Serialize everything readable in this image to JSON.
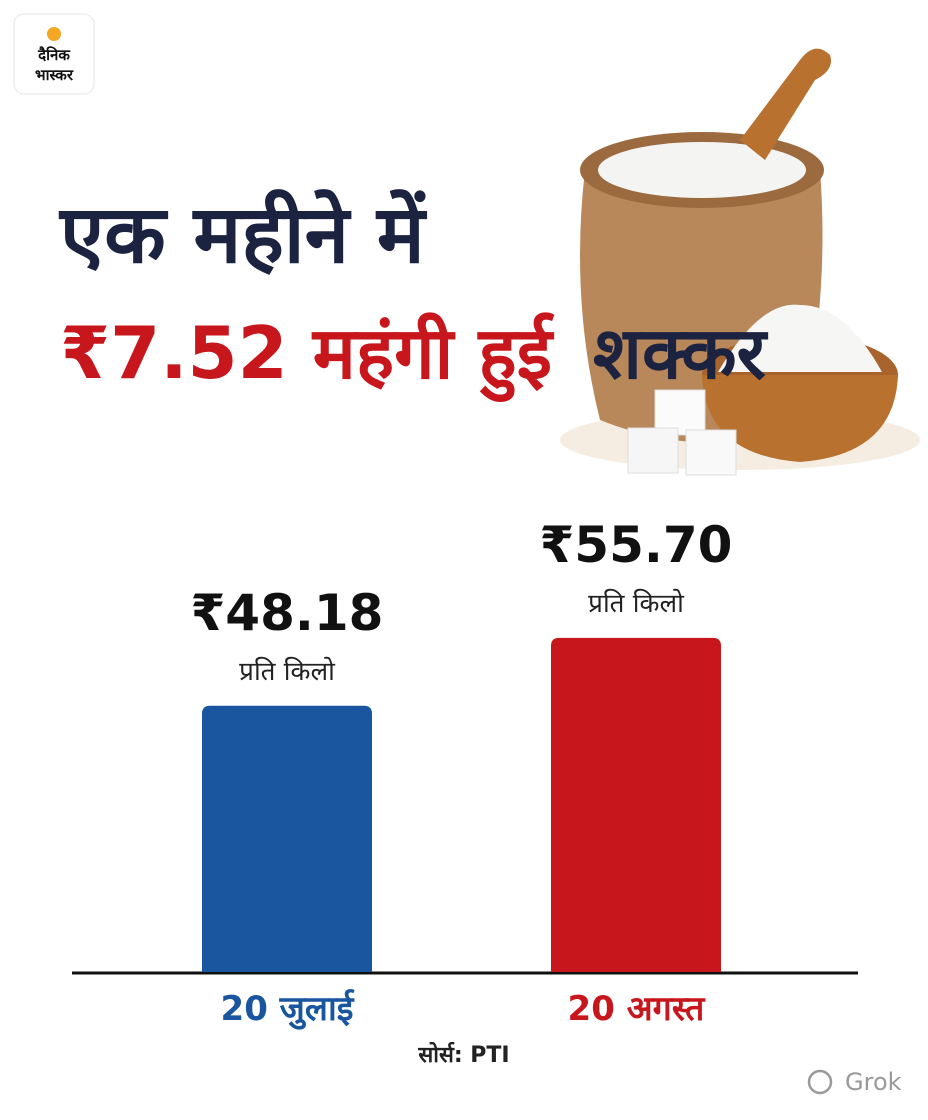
{
  "logo": [
    "दैनिक",
    "भास्कर"
  ],
  "chart_data": {
    "type": "bar",
    "title": [
      "एक महीने में",
      "₹7.52 महंगी हुई",
      "शक्कर"
    ],
    "title_colors": [
      "#1c2340",
      "#c8161d",
      "#1c2340"
    ],
    "categories": [
      "20 जुलाई",
      "20 अगस्त"
    ],
    "values": [
      48.18,
      55.7
    ],
    "value_labels": [
      "₹48.18",
      "₹55.70"
    ],
    "unit_label": "प्रति किलो",
    "colors": [
      "#1a56a0",
      "#c8161d"
    ],
    "ylim": [
      18.7,
      60
    ],
    "source": "सोर्स: PTI"
  },
  "watermark": "Grok"
}
